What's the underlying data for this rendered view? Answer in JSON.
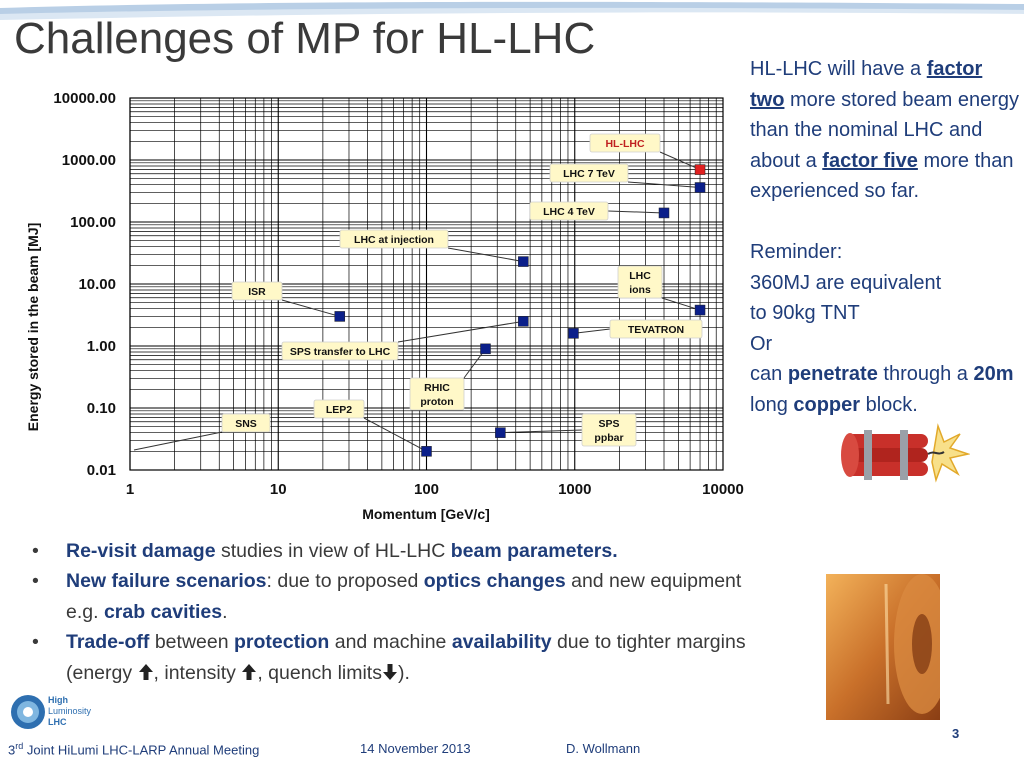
{
  "title": "Challenges of MP for HL-LHC",
  "side_text": {
    "p1_a": "HL-LHC will have a ",
    "p1_b": "factor two",
    "p1_c": " more stored beam energy than the nominal LHC and about a ",
    "p1_d": "factor five",
    "p1_e": " more than experienced so far.",
    "reminder": "Reminder:",
    "r1": "360MJ are equivalent to 90kg TNT",
    "or": "Or",
    "r2_a": "can ",
    "r2_b": "penetrate",
    "r2_c": " through a ",
    "r2_d": "20m",
    "r2_e": " long ",
    "r2_f": "copper",
    "r2_g": " block."
  },
  "bullets": {
    "b1_a": "Re-visit damage",
    "b1_b": " studies in view of HL-LHC ",
    "b1_c": "beam parameters.",
    "b2_a": "New failure scenarios",
    "b2_b": ": due to proposed ",
    "b2_c": "optics changes",
    "b2_d": " and new equipment e.g. ",
    "b2_e": "crab cavities",
    "b2_f": ".",
    "b3_a": "Trade-off",
    "b3_b": " between ",
    "b3_c": "protection",
    "b3_d": " and machine ",
    "b3_e": "availability",
    "b3_f": " due to tighter margins (energy ",
    "b3_g": ", intensity ",
    "b3_h": ", quench limits",
    "b3_i": ")."
  },
  "footer": {
    "meeting_prefix": "3",
    "meeting_sup": "rd",
    "meeting": " Joint HiLumi LHC-LARP Annual Meeting",
    "date": "14 November 2013",
    "author": "D. Wollmann",
    "page": "3"
  },
  "logo": {
    "line1": "High",
    "line2": "Luminosity",
    "line3": "LHC"
  },
  "colors": {
    "accent": "#1f3d7a",
    "marker": "#0b1f8a",
    "highlight": "#e02020",
    "label_fill": "#fff8c8"
  },
  "chart_data": {
    "type": "scatter",
    "xlabel": "Momentum  [GeV/c]",
    "ylabel": "Energy stored in the beam [MJ]",
    "xscale": "log",
    "yscale": "log",
    "xlim": [
      1,
      10000
    ],
    "ylim": [
      0.01,
      10000
    ],
    "grid": true,
    "x_ticks": [
      "1",
      "10",
      "100",
      "1000",
      "10000"
    ],
    "y_ticks": [
      "10000.00",
      "1000.00",
      "100.00",
      "10.00",
      "1.00",
      "0.10",
      "0.01"
    ],
    "points": [
      {
        "label": "HL-LHC",
        "x": 7000,
        "y": 700,
        "highlight": true
      },
      {
        "label": "LHC 7 TeV",
        "x": 7000,
        "y": 360
      },
      {
        "label": "LHC 4 TeV",
        "x": 4000,
        "y": 140
      },
      {
        "label": "LHC at injection",
        "x": 450,
        "y": 23
      },
      {
        "label": "LHC ions",
        "x": 7000,
        "y": 3.8
      },
      {
        "label": "ISR",
        "x": 26,
        "y": 3
      },
      {
        "label": "TEVATRON",
        "x": 980,
        "y": 1.6
      },
      {
        "label": "SPS transfer to LHC",
        "x": 450,
        "y": 2.5
      },
      {
        "label": "RHIC proton",
        "x": 250,
        "y": 0.9
      },
      {
        "label": "LEP2",
        "x": 100,
        "y": 0.02
      },
      {
        "label": "SPS ppbar",
        "x": 315,
        "y": 0.04
      },
      {
        "label": "SNS",
        "x": 1,
        "y": 0.02,
        "no_marker": true
      }
    ]
  }
}
